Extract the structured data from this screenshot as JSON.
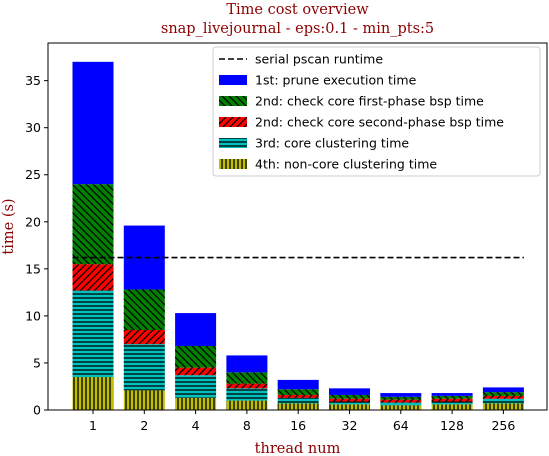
{
  "chart_data": {
    "type": "bar",
    "stacked": true,
    "title": "Time cost overview",
    "subtitle": "snap_livejournal - eps:0.1 - min_pts:5",
    "xlabel": "thread num",
    "ylabel": "time (s)",
    "ylim": [
      0,
      39
    ],
    "yticks": [
      0,
      5,
      10,
      15,
      20,
      25,
      30,
      35
    ],
    "categories": [
      "1",
      "2",
      "4",
      "8",
      "16",
      "32",
      "64",
      "128",
      "256"
    ],
    "series": [
      {
        "name": "4th: non-core clustering time",
        "color": "#bfbf00",
        "hatch": "vertical",
        "values": [
          3.5,
          2.1,
          1.3,
          1.0,
          0.7,
          0.6,
          0.5,
          0.6,
          0.7
        ]
      },
      {
        "name": "3rd: core clustering time",
        "color": "#00bfbf",
        "hatch": "horizontal",
        "values": [
          9.2,
          4.9,
          2.4,
          1.3,
          0.6,
          0.3,
          0.3,
          0.3,
          0.5
        ]
      },
      {
        "name": "2nd: check core second-phase bsp time",
        "color": "#ff0000",
        "hatch": "diagonal-up",
        "values": [
          2.8,
          1.5,
          0.8,
          0.5,
          0.3,
          0.3,
          0.3,
          0.3,
          0.3
        ]
      },
      {
        "name": "2nd: check core first-phase bsp time",
        "color": "#008000",
        "hatch": "diagonal-down",
        "values": [
          8.5,
          4.3,
          2.3,
          1.2,
          0.6,
          0.4,
          0.3,
          0.3,
          0.4
        ]
      },
      {
        "name": "1st: prune execution time",
        "color": "#0000ff",
        "hatch": "none",
        "values": [
          13.0,
          6.8,
          3.5,
          1.8,
          1.0,
          0.7,
          0.4,
          0.3,
          0.5
        ]
      }
    ],
    "reference_line": {
      "name": "serial pscan runtime",
      "value": 16.2,
      "style": "dashed",
      "color": "#000000"
    },
    "legend_order": [
      "serial pscan runtime",
      "1st: prune execution time",
      "2nd: check core first-phase bsp time",
      "2nd: check core second-phase bsp time",
      "3rd: core clustering time",
      "4th: non-core clustering time"
    ],
    "legend_position": "top-right",
    "title_color": "#8b0000",
    "grid": false
  }
}
